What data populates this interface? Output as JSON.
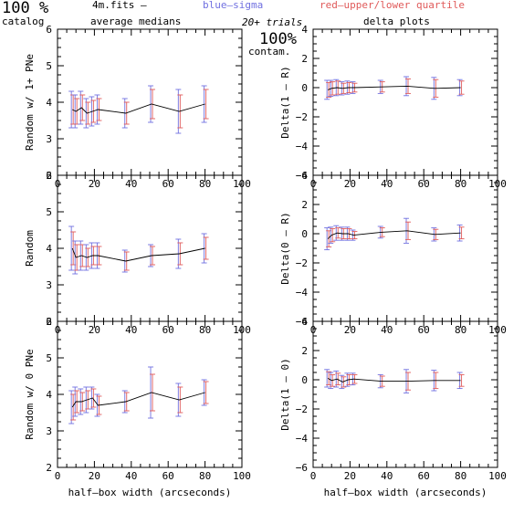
{
  "header": {
    "big_left": "100 %",
    "catalog": "catalog",
    "filename": "4m.fits  –",
    "blue_label": "blue–sigma",
    "red_label": "red–upper/lower quartile",
    "average_medians": "average medians",
    "trials": "20+ trials",
    "delta_plots": "delta plots",
    "big_right": "100%",
    "contam": "contam."
  },
  "colors": {
    "blue_sigma": "#7070e0",
    "red_quartile": "#e05a5a",
    "median_line": "#000000"
  },
  "chart_data": [
    {
      "type": "line",
      "ylabel": "Random w/ 1+ PNe",
      "xlabel": "",
      "xlim": [
        0,
        100
      ],
      "ylim": [
        2,
        6
      ],
      "xticks": [
        "0",
        "20",
        "40",
        "60",
        "80",
        "100"
      ],
      "yticks": [
        "2",
        "3",
        "4",
        "5",
        "6"
      ],
      "x": [
        8,
        10,
        13,
        16,
        19,
        22,
        37,
        51,
        66,
        80
      ],
      "y": [
        3.8,
        3.75,
        3.85,
        3.7,
        3.75,
        3.8,
        3.7,
        3.95,
        3.75,
        3.95
      ],
      "sigma": [
        0.5,
        0.45,
        0.45,
        0.4,
        0.4,
        0.4,
        0.4,
        0.5,
        0.6,
        0.5
      ],
      "quartile": [
        0.4,
        0.35,
        0.35,
        0.3,
        0.3,
        0.3,
        0.3,
        0.4,
        0.45,
        0.4
      ]
    },
    {
      "type": "line",
      "ylabel": "Delta(1 – R)",
      "xlabel": "",
      "xlim": [
        0,
        100
      ],
      "ylim": [
        -6,
        4
      ],
      "xticks": [
        "0",
        "20",
        "40",
        "60",
        "80",
        "100"
      ],
      "yticks": [
        "−6",
        "−4",
        "−2",
        "0",
        "2",
        "4"
      ],
      "x": [
        8,
        10,
        13,
        16,
        19,
        22,
        37,
        51,
        66,
        80
      ],
      "y": [
        -0.15,
        -0.05,
        0.0,
        -0.05,
        0.0,
        0.0,
        0.05,
        0.1,
        -0.05,
        0.0
      ],
      "sigma": [
        0.65,
        0.55,
        0.55,
        0.45,
        0.45,
        0.4,
        0.45,
        0.65,
        0.75,
        0.55
      ],
      "quartile": [
        0.5,
        0.45,
        0.45,
        0.35,
        0.35,
        0.3,
        0.35,
        0.5,
        0.6,
        0.45
      ]
    },
    {
      "type": "line",
      "ylabel": "Random",
      "xlabel": "",
      "xlim": [
        0,
        100
      ],
      "ylim": [
        2,
        6
      ],
      "xticks": [
        "0",
        "20",
        "40",
        "60",
        "80",
        "100"
      ],
      "yticks": [
        "2",
        "3",
        "4",
        "5",
        "6"
      ],
      "x": [
        8,
        10,
        13,
        16,
        19,
        22,
        37,
        51,
        66,
        80
      ],
      "y": [
        4.0,
        3.75,
        3.8,
        3.75,
        3.8,
        3.8,
        3.65,
        3.8,
        3.85,
        4.0
      ],
      "sigma": [
        0.6,
        0.45,
        0.4,
        0.35,
        0.35,
        0.35,
        0.3,
        0.3,
        0.4,
        0.4
      ],
      "quartile": [
        0.45,
        0.35,
        0.3,
        0.25,
        0.25,
        0.25,
        0.25,
        0.25,
        0.3,
        0.3
      ]
    },
    {
      "type": "line",
      "ylabel": "Delta(0 – R)",
      "xlabel": "",
      "xlim": [
        0,
        100
      ],
      "ylim": [
        -6,
        4
      ],
      "xticks": [
        "0",
        "20",
        "40",
        "60",
        "80",
        "100"
      ],
      "yticks": [
        "−6",
        "−4",
        "−2",
        "0",
        "2",
        "4"
      ],
      "x": [
        8,
        10,
        13,
        16,
        19,
        22,
        37,
        51,
        66,
        80
      ],
      "y": [
        -0.35,
        -0.1,
        0.05,
        0.0,
        0.0,
        -0.1,
        0.1,
        0.2,
        -0.05,
        0.05
      ],
      "sigma": [
        0.75,
        0.55,
        0.5,
        0.45,
        0.45,
        0.35,
        0.4,
        0.85,
        0.45,
        0.55
      ],
      "quartile": [
        0.55,
        0.45,
        0.35,
        0.35,
        0.35,
        0.25,
        0.3,
        0.6,
        0.35,
        0.4
      ]
    },
    {
      "type": "line",
      "ylabel": "Random w/ 0 PNe",
      "xlabel": "half–box width (arcseconds)",
      "xlim": [
        0,
        100
      ],
      "ylim": [
        2,
        6
      ],
      "xticks": [
        "0",
        "20",
        "40",
        "60",
        "80",
        "100"
      ],
      "yticks": [
        "2",
        "3",
        "4",
        "5",
        "6"
      ],
      "x": [
        8,
        10,
        13,
        16,
        19,
        22,
        37,
        51,
        66,
        80
      ],
      "y": [
        3.65,
        3.8,
        3.8,
        3.85,
        3.9,
        3.7,
        3.8,
        4.05,
        3.85,
        4.05
      ],
      "sigma": [
        0.45,
        0.4,
        0.35,
        0.35,
        0.3,
        0.3,
        0.3,
        0.7,
        0.45,
        0.35
      ],
      "quartile": [
        0.35,
        0.3,
        0.25,
        0.25,
        0.25,
        0.25,
        0.25,
        0.5,
        0.35,
        0.3
      ]
    },
    {
      "type": "line",
      "ylabel": "Delta(1 – 0)",
      "xlabel": "half–box width (arcseconds)",
      "xlim": [
        0,
        100
      ],
      "ylim": [
        -6,
        4
      ],
      "xticks": [
        "0",
        "20",
        "40",
        "60",
        "80",
        "100"
      ],
      "yticks": [
        "−6",
        "−4",
        "−2",
        "0",
        "2",
        "4"
      ],
      "x": [
        8,
        10,
        13,
        16,
        19,
        22,
        37,
        51,
        66,
        80
      ],
      "y": [
        0.1,
        -0.05,
        0.05,
        -0.15,
        0.0,
        0.05,
        -0.1,
        -0.1,
        -0.05,
        -0.05
      ],
      "sigma": [
        0.6,
        0.55,
        0.55,
        0.45,
        0.45,
        0.4,
        0.45,
        0.8,
        0.7,
        0.55
      ],
      "quartile": [
        0.45,
        0.4,
        0.4,
        0.35,
        0.35,
        0.3,
        0.35,
        0.6,
        0.55,
        0.4
      ]
    }
  ]
}
